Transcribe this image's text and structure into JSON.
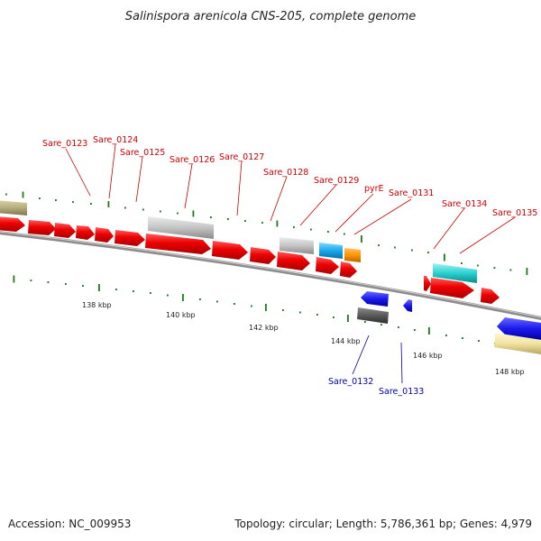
{
  "title": "Salinispora arenicola CNS-205, complete genome",
  "footer": {
    "accession": "Accession: NC_009953",
    "topology": "Topology: circular; Length: 5,786,361 bp; Genes: 4,979"
  },
  "colors": {
    "forward_label": "#cc0000",
    "reverse_label": "#0000aa",
    "tick": "#1f7a1f",
    "backbone": "#8c8c8c"
  },
  "kbp_labels": [
    "138 kbp",
    "140 kbp",
    "142 kbp",
    "144 kbp",
    "146 kbp",
    "148 kbp"
  ],
  "forward_gene_labels": [
    "Sare_0123",
    "Sare_0124",
    "Sare_0125",
    "Sare_0126",
    "Sare_0127",
    "Sare_0128",
    "Sare_0129",
    "pyrE",
    "Sare_0131",
    "Sare_0134",
    "Sare_0135"
  ],
  "reverse_gene_labels": [
    "Sare_0132",
    "Sare_0133"
  ]
}
